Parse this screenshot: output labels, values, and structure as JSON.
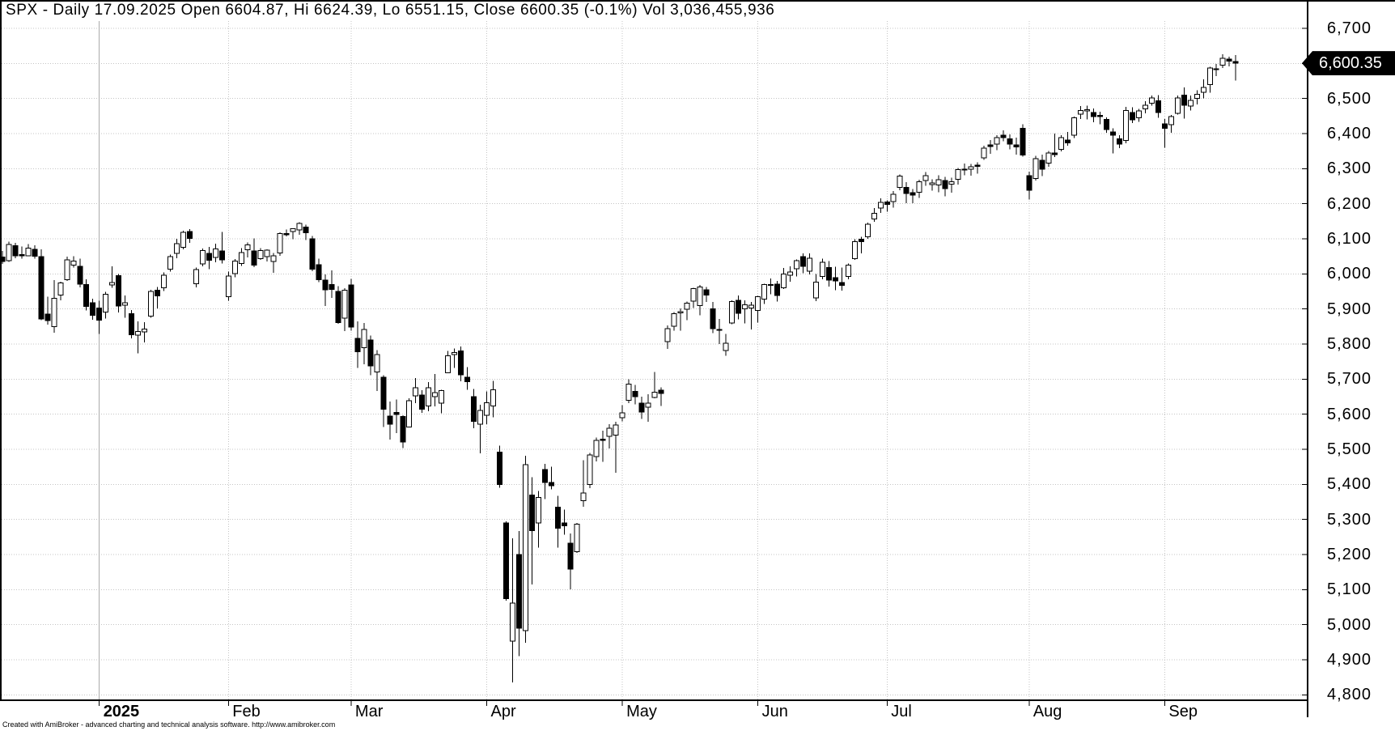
{
  "title": "SPX - Daily 17.09.2025 Open 6604.87, Hi 6624.39, Lo 6551.15, Close 6600.35 (-0.1%) Vol 3,036,455,936",
  "footer": "Created with AmiBroker - advanced charting and technical analysis software. http://www.amibroker.com",
  "price_tag": {
    "label": "6,600.35"
  },
  "colors": {
    "background": "#ffffff",
    "up_candle_fill": "#ffffff",
    "down_candle_fill": "#000000",
    "candle_outline": "#000000",
    "grid_dotted": "#c4c4c4",
    "year_line": "#aaaaaa",
    "axis": "#000000",
    "tag_bg": "#000000",
    "tag_text": "#ffffff"
  },
  "chart_data": {
    "type": "candlestick",
    "symbol": "SPX",
    "interval": "Daily",
    "last_bar": {
      "date": "17.09.2025",
      "open": 6604.87,
      "high": 6624.39,
      "low": 6551.15,
      "close": 6600.35,
      "change_pct": -0.1,
      "volume": "3,036,455,936"
    },
    "ylim": [
      4800,
      6700
    ],
    "y_step": 100,
    "grid": "dotted",
    "y_tick_labels": [
      "6,700",
      "6,600",
      "6,500",
      "6,400",
      "6,300",
      "6,200",
      "6,100",
      "6,000",
      "5,900",
      "5,800",
      "5,700",
      "5,600",
      "5,500",
      "5,400",
      "5,300",
      "5,200",
      "5,100",
      "5,000",
      "4,900",
      "4,800"
    ],
    "x_tick_labels": [
      "2025",
      "Feb",
      "Mar",
      "Apr",
      "May",
      "Jun",
      "Jul",
      "Aug",
      "Sep"
    ],
    "months": [
      {
        "label": "2025",
        "index": 15,
        "bold": true
      },
      {
        "label": "Feb",
        "index": 35
      },
      {
        "label": "Mar",
        "index": 54
      },
      {
        "label": "Apr",
        "index": 75
      },
      {
        "label": "May",
        "index": 96
      },
      {
        "label": "Jun",
        "index": 117
      },
      {
        "label": "Jul",
        "index": 137
      },
      {
        "label": "Aug",
        "index": 159
      },
      {
        "label": "Sep",
        "index": 180
      }
    ],
    "candles": [
      [
        6048,
        6065,
        6029,
        6035
      ],
      [
        6038,
        6092,
        6034,
        6084
      ],
      [
        6080,
        6088,
        6045,
        6051
      ],
      [
        6055,
        6078,
        6043,
        6051
      ],
      [
        6052,
        6085,
        6050,
        6074
      ],
      [
        6070,
        6081,
        6044,
        6050
      ],
      [
        6049,
        6070,
        5868,
        5872
      ],
      [
        5885,
        5935,
        5855,
        5867
      ],
      [
        5850,
        5982,
        5832,
        5930
      ],
      [
        5940,
        5978,
        5925,
        5974
      ],
      [
        5983,
        6049,
        5980,
        6040
      ],
      [
        6025,
        6050,
        6018,
        6037
      ],
      [
        6021,
        6044,
        5962,
        5971
      ],
      [
        5970,
        5985,
        5896,
        5907
      ],
      [
        5918,
        5929,
        5869,
        5882
      ],
      [
        5903,
        5923,
        5829,
        5868
      ],
      [
        5891,
        5949,
        5873,
        5942
      ],
      [
        5969,
        6021,
        5960,
        5975
      ],
      [
        5995,
        6000,
        5890,
        5909
      ],
      [
        5911,
        5939,
        5875,
        5918
      ],
      [
        5887,
        5897,
        5816,
        5827
      ],
      [
        5825,
        5865,
        5773,
        5836
      ],
      [
        5835,
        5862,
        5805,
        5843
      ],
      [
        5880,
        5955,
        5875,
        5950
      ],
      [
        5953,
        5963,
        5902,
        5937
      ],
      [
        5960,
        6004,
        5951,
        5996
      ],
      [
        6014,
        6055,
        6006,
        6049
      ],
      [
        6059,
        6100,
        6045,
        6086
      ],
      [
        6076,
        6123,
        6070,
        6118
      ],
      [
        6121,
        6128,
        6088,
        6101
      ],
      [
        5972,
        6018,
        5962,
        6012
      ],
      [
        6028,
        6072,
        6021,
        6067
      ],
      [
        6058,
        6077,
        6013,
        6039
      ],
      [
        6047,
        6086,
        6033,
        6071
      ],
      [
        6065,
        6120,
        6030,
        6040
      ],
      [
        5935,
        6007,
        5923,
        5994
      ],
      [
        6001,
        6042,
        5990,
        6037
      ],
      [
        6030,
        6073,
        6023,
        6061
      ],
      [
        6069,
        6090,
        6047,
        6083
      ],
      [
        6065,
        6101,
        6019,
        6025
      ],
      [
        6043,
        6073,
        6040,
        6066
      ],
      [
        6049,
        6070,
        6035,
        6068
      ],
      [
        6035,
        6060,
        6003,
        6051
      ],
      [
        6060,
        6118,
        6052,
        6115
      ],
      [
        6115,
        6127,
        6107,
        6114
      ],
      [
        6121,
        6130,
        6099,
        6129
      ],
      [
        6125,
        6147,
        6111,
        6144
      ],
      [
        6134,
        6140,
        6097,
        6117
      ],
      [
        6100,
        6108,
        6008,
        6013
      ],
      [
        6026,
        6043,
        5977,
        5983
      ],
      [
        5982,
        5998,
        5908,
        5955
      ],
      [
        5970,
        6010,
        5932,
        5956
      ],
      [
        5950,
        5965,
        5858,
        5861
      ],
      [
        5874,
        5959,
        5837,
        5954
      ],
      [
        5968,
        5986,
        5838,
        5849
      ],
      [
        5816,
        5865,
        5732,
        5778
      ],
      [
        5790,
        5860,
        5742,
        5842
      ],
      [
        5812,
        5824,
        5711,
        5738
      ],
      [
        5720,
        5783,
        5666,
        5770
      ],
      [
        5705,
        5711,
        5564,
        5614
      ],
      [
        5595,
        5636,
        5528,
        5572
      ],
      [
        5605,
        5642,
        5546,
        5599
      ],
      [
        5594,
        5597,
        5504,
        5521
      ],
      [
        5563,
        5645,
        5563,
        5638
      ],
      [
        5652,
        5703,
        5631,
        5675
      ],
      [
        5655,
        5668,
        5604,
        5614
      ],
      [
        5623,
        5691,
        5608,
        5675
      ],
      [
        5650,
        5715,
        5622,
        5662
      ],
      [
        5632,
        5670,
        5603,
        5667
      ],
      [
        5718,
        5780,
        5718,
        5767
      ],
      [
        5770,
        5787,
        5732,
        5776
      ],
      [
        5780,
        5793,
        5694,
        5712
      ],
      [
        5705,
        5734,
        5670,
        5693
      ],
      [
        5650,
        5672,
        5560,
        5580
      ],
      [
        5572,
        5627,
        5488,
        5611
      ],
      [
        5597,
        5665,
        5571,
        5633
      ],
      [
        5624,
        5695,
        5591,
        5670
      ],
      [
        5492,
        5510,
        5390,
        5400
      ],
      [
        5290,
        5295,
        5069,
        5074
      ],
      [
        4953,
        5246,
        4835,
        5062
      ],
      [
        5200,
        5267,
        4910,
        4990
      ],
      [
        4983,
        5481,
        4948,
        5456
      ],
      [
        5370,
        5420,
        5115,
        5268
      ],
      [
        5290,
        5381,
        5220,
        5363
      ],
      [
        5442,
        5459,
        5358,
        5405
      ],
      [
        5405,
        5450,
        5386,
        5396
      ],
      [
        5335,
        5367,
        5220,
        5275
      ],
      [
        5290,
        5328,
        5256,
        5282
      ],
      [
        5232,
        5260,
        5101,
        5158
      ],
      [
        5208,
        5290,
        5205,
        5287
      ],
      [
        5354,
        5469,
        5336,
        5375
      ],
      [
        5400,
        5490,
        5389,
        5484
      ],
      [
        5479,
        5533,
        5465,
        5525
      ],
      [
        5529,
        5553,
        5464,
        5528
      ],
      [
        5537,
        5572,
        5502,
        5560
      ],
      [
        5540,
        5578,
        5433,
        5569
      ],
      [
        5590,
        5626,
        5580,
        5604
      ],
      [
        5640,
        5700,
        5632,
        5686
      ],
      [
        5665,
        5684,
        5628,
        5650
      ],
      [
        5632,
        5650,
        5586,
        5606
      ],
      [
        5620,
        5657,
        5578,
        5631
      ],
      [
        5648,
        5720,
        5645,
        5663
      ],
      [
        5669,
        5677,
        5624,
        5659
      ],
      [
        5807,
        5853,
        5786,
        5844
      ],
      [
        5851,
        5891,
        5838,
        5886
      ],
      [
        5889,
        5901,
        5838,
        5892
      ],
      [
        5899,
        5921,
        5868,
        5916
      ],
      [
        5922,
        5960,
        5903,
        5958
      ],
      [
        5910,
        5968,
        5882,
        5963
      ],
      [
        5955,
        5963,
        5920,
        5940
      ],
      [
        5900,
        5920,
        5831,
        5844
      ],
      [
        5840,
        5872,
        5800,
        5842
      ],
      [
        5782,
        5829,
        5767,
        5802
      ],
      [
        5860,
        5925,
        5856,
        5921
      ],
      [
        5925,
        5938,
        5870,
        5888
      ],
      [
        5900,
        5925,
        5859,
        5912
      ],
      [
        5903,
        5920,
        5842,
        5911
      ],
      [
        5896,
        5937,
        5861,
        5935
      ],
      [
        5928,
        5972,
        5914,
        5970
      ],
      [
        5968,
        5987,
        5942,
        5970
      ],
      [
        5971,
        5980,
        5921,
        5939
      ],
      [
        5960,
        6017,
        5957,
        6000
      ],
      [
        5996,
        6021,
        5978,
        6005
      ],
      [
        6015,
        6041,
        5993,
        6038
      ],
      [
        6049,
        6059,
        6002,
        6022
      ],
      [
        6008,
        6059,
        5998,
        6045
      ],
      [
        5932,
        6000,
        5922,
        5976
      ],
      [
        5993,
        6043,
        5985,
        6033
      ],
      [
        6018,
        6036,
        5964,
        5982
      ],
      [
        5989,
        6020,
        5954,
        5980
      ],
      [
        5975,
        6018,
        5952,
        5967
      ],
      [
        5993,
        6030,
        5985,
        6025
      ],
      [
        6043,
        6099,
        6040,
        6092
      ],
      [
        6099,
        6106,
        6059,
        6092
      ],
      [
        6106,
        6146,
        6100,
        6141
      ],
      [
        6156,
        6188,
        6149,
        6173
      ],
      [
        6188,
        6215,
        6174,
        6204
      ],
      [
        6205,
        6210,
        6177,
        6198
      ],
      [
        6206,
        6236,
        6189,
        6227
      ],
      [
        6246,
        6284,
        6238,
        6279
      ],
      [
        6247,
        6262,
        6201,
        6229
      ],
      [
        6232,
        6242,
        6202,
        6225
      ],
      [
        6233,
        6269,
        6217,
        6263
      ],
      [
        6266,
        6290,
        6251,
        6280
      ],
      [
        6255,
        6270,
        6237,
        6259
      ],
      [
        6253,
        6281,
        6233,
        6268
      ],
      [
        6266,
        6276,
        6221,
        6243
      ],
      [
        6256,
        6274,
        6231,
        6263
      ],
      [
        6270,
        6302,
        6255,
        6297
      ],
      [
        6299,
        6315,
        6281,
        6296
      ],
      [
        6298,
        6313,
        6280,
        6305
      ],
      [
        6310,
        6318,
        6286,
        6309
      ],
      [
        6331,
        6365,
        6325,
        6358
      ],
      [
        6368,
        6381,
        6342,
        6363
      ],
      [
        6370,
        6395,
        6353,
        6388
      ],
      [
        6395,
        6409,
        6378,
        6389
      ],
      [
        6385,
        6398,
        6355,
        6370
      ],
      [
        6368,
        6388,
        6340,
        6362
      ],
      [
        6415,
        6427,
        6334,
        6339
      ],
      [
        6280,
        6292,
        6212,
        6238
      ],
      [
        6272,
        6337,
        6266,
        6329
      ],
      [
        6324,
        6340,
        6279,
        6299
      ],
      [
        6316,
        6350,
        6305,
        6345
      ],
      [
        6345,
        6400,
        6333,
        6340
      ],
      [
        6355,
        6395,
        6349,
        6389
      ],
      [
        6382,
        6405,
        6365,
        6373
      ],
      [
        6395,
        6448,
        6387,
        6445
      ],
      [
        6455,
        6478,
        6441,
        6466
      ],
      [
        6465,
        6480,
        6440,
        6468
      ],
      [
        6460,
        6471,
        6432,
        6449
      ],
      [
        6452,
        6462,
        6427,
        6449
      ],
      [
        6440,
        6446,
        6402,
        6411
      ],
      [
        6405,
        6415,
        6343,
        6395
      ],
      [
        6385,
        6395,
        6358,
        6370
      ],
      [
        6380,
        6476,
        6372,
        6466
      ],
      [
        6460,
        6475,
        6430,
        6439
      ],
      [
        6445,
        6470,
        6434,
        6465
      ],
      [
        6470,
        6492,
        6458,
        6481
      ],
      [
        6486,
        6508,
        6480,
        6501
      ],
      [
        6494,
        6510,
        6445,
        6460
      ],
      [
        6428,
        6442,
        6360,
        6415
      ],
      [
        6425,
        6453,
        6402,
        6448
      ],
      [
        6458,
        6508,
        6454,
        6502
      ],
      [
        6510,
        6532,
        6443,
        6481
      ],
      [
        6478,
        6508,
        6466,
        6495
      ],
      [
        6500,
        6524,
        6483,
        6512
      ],
      [
        6518,
        6555,
        6500,
        6532
      ],
      [
        6540,
        6590,
        6517,
        6587
      ],
      [
        6585,
        6598,
        6564,
        6584
      ],
      [
        6595,
        6626,
        6587,
        6615
      ],
      [
        6612,
        6619,
        6592,
        6606
      ],
      [
        6604.87,
        6624.39,
        6551.15,
        6600.35
      ]
    ]
  }
}
